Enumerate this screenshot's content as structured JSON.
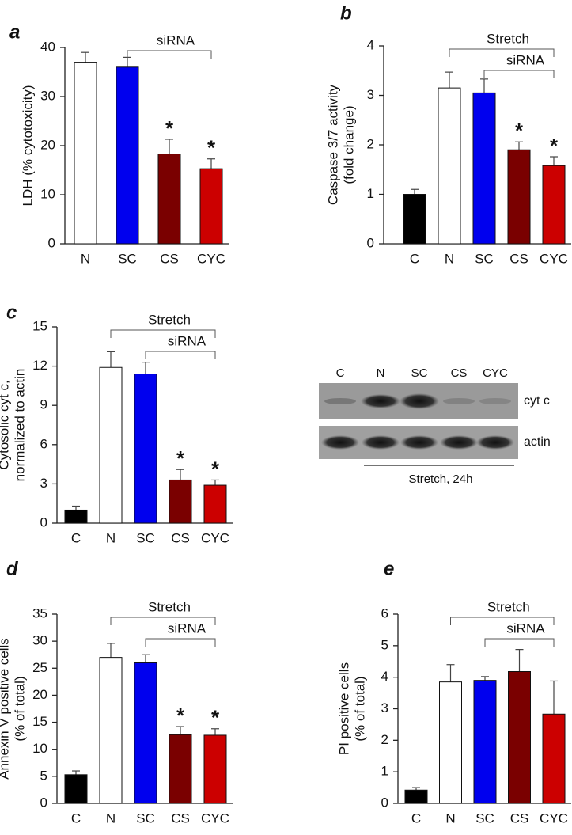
{
  "chart_data": [
    {
      "type": "bar",
      "panel": "a",
      "ylabel": [
        "LDH (% cytotoxicity)"
      ],
      "categories": [
        "N",
        "SC",
        "CS",
        "CYC"
      ],
      "values": [
        37,
        36,
        18.3,
        15.3
      ],
      "errors": [
        2,
        2,
        3,
        2
      ],
      "colors": [
        "#ffffff",
        "#0000ee",
        "#7a0000",
        "#cc0000"
      ],
      "significance": [
        null,
        null,
        "*",
        "*"
      ],
      "brackets": [
        "siRNA"
      ],
      "ylim": [
        0,
        40
      ],
      "yticks": [
        0,
        10,
        20,
        30,
        40
      ]
    },
    {
      "type": "bar",
      "panel": "b",
      "ylabel": [
        "Caspase 3/7 activity",
        "(fold change)"
      ],
      "categories": [
        "C",
        "N",
        "SC",
        "CS",
        "CYC"
      ],
      "values": [
        1.0,
        3.15,
        3.05,
        1.9,
        1.58
      ],
      "errors": [
        0.1,
        0.32,
        0.28,
        0.16,
        0.18
      ],
      "colors": [
        "#000000",
        "#ffffff",
        "#0000ee",
        "#7a0000",
        "#cc0000"
      ],
      "significance": [
        null,
        null,
        null,
        "*",
        "*"
      ],
      "brackets": [
        "Stretch",
        "siRNA"
      ],
      "ylim": [
        0,
        4
      ],
      "yticks": [
        0,
        1,
        2,
        3,
        4
      ]
    },
    {
      "type": "bar",
      "panel": "c",
      "ylabel": [
        "Cytosolic cyt c,",
        "normalized to actin"
      ],
      "categories": [
        "C",
        "N",
        "SC",
        "CS",
        "CYC"
      ],
      "values": [
        1.0,
        11.9,
        11.4,
        3.3,
        2.9
      ],
      "errors": [
        0.3,
        1.2,
        0.9,
        0.8,
        0.4
      ],
      "colors": [
        "#000000",
        "#ffffff",
        "#0000ee",
        "#7a0000",
        "#cc0000"
      ],
      "significance": [
        null,
        null,
        null,
        "*",
        "*"
      ],
      "brackets": [
        "Stretch",
        "siRNA"
      ],
      "ylim": [
        0,
        15
      ],
      "yticks": [
        0,
        3,
        6,
        9,
        12,
        15
      ]
    },
    {
      "type": "bar",
      "panel": "d",
      "ylabel": [
        "Annexin V positive cells",
        "(% of total)"
      ],
      "categories": [
        "C",
        "N",
        "SC",
        "CS",
        "CYC"
      ],
      "values": [
        5.3,
        27,
        26,
        12.7,
        12.6
      ],
      "errors": [
        0.7,
        2.6,
        1.5,
        1.5,
        1.2
      ],
      "colors": [
        "#000000",
        "#ffffff",
        "#0000ee",
        "#7a0000",
        "#cc0000"
      ],
      "significance": [
        null,
        null,
        null,
        "*",
        "*"
      ],
      "brackets": [
        "Stretch",
        "siRNA"
      ],
      "ylim": [
        0,
        35
      ],
      "yticks": [
        0,
        5,
        10,
        15,
        20,
        25,
        30,
        35
      ]
    },
    {
      "type": "bar",
      "panel": "e",
      "ylabel": [
        "PI positive cells",
        "(% of total)"
      ],
      "categories": [
        "C",
        "N",
        "SC",
        "CS",
        "CYC"
      ],
      "values": [
        0.42,
        3.85,
        3.9,
        4.18,
        2.83
      ],
      "errors": [
        0.08,
        0.55,
        0.12,
        0.7,
        1.05
      ],
      "colors": [
        "#000000",
        "#ffffff",
        "#0000ee",
        "#7a0000",
        "#cc0000"
      ],
      "significance": [
        null,
        null,
        null,
        null,
        null
      ],
      "brackets": [
        "Stretch",
        "siRNA"
      ],
      "ylim": [
        0,
        6
      ],
      "yticks": [
        0,
        1,
        2,
        3,
        4,
        5,
        6
      ]
    }
  ],
  "blot": {
    "lanes": [
      "C",
      "N",
      "SC",
      "CS",
      "CYC"
    ],
    "rows": [
      "cyt c",
      "actin"
    ],
    "caption": "Stretch, 24h"
  }
}
